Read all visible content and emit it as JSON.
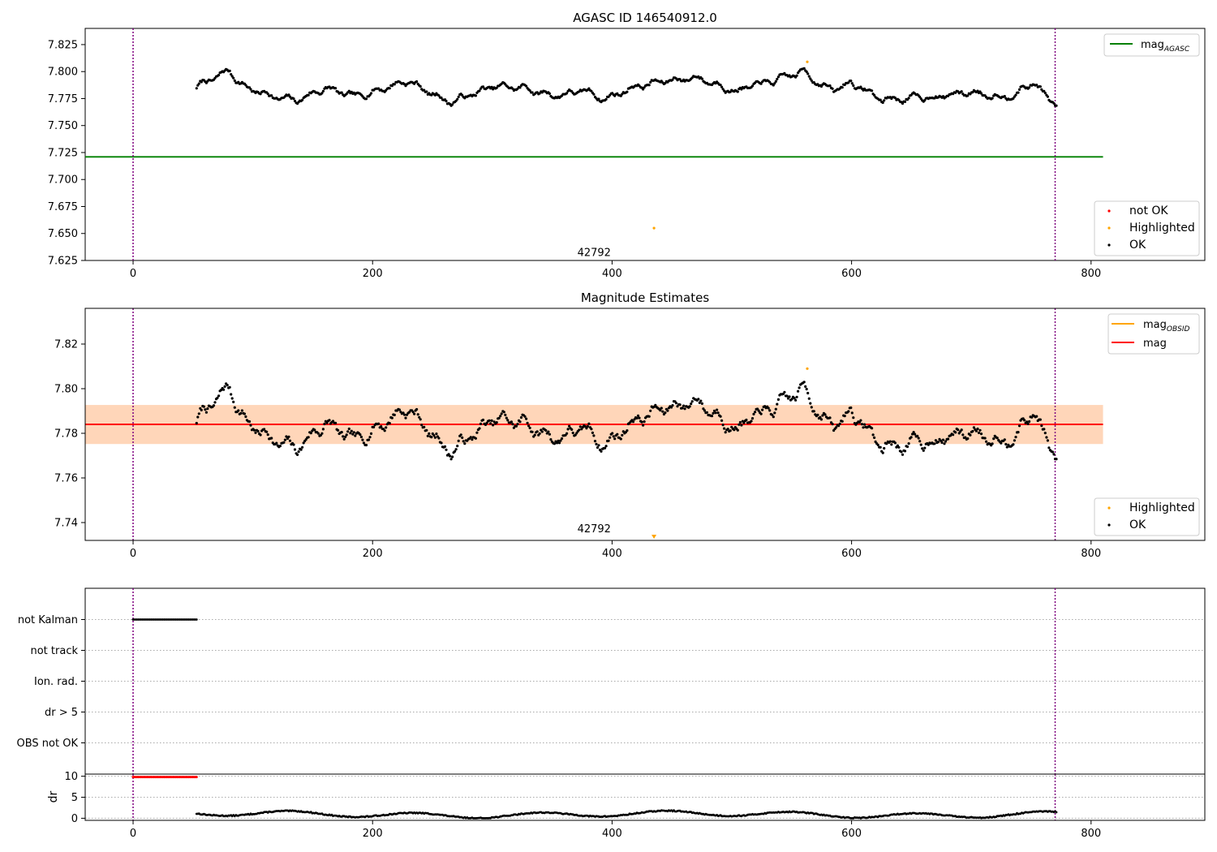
{
  "chart_data": [
    {
      "type": "scatter",
      "title": "AGASC ID 146540912.0",
      "xlabel": "",
      "ylabel": "",
      "xlim": [
        -40,
        895
      ],
      "ylim": [
        7.625,
        7.84
      ],
      "x_ticks": [
        0,
        200,
        400,
        600,
        800
      ],
      "y_ticks": [
        7.625,
        7.65,
        7.675,
        7.7,
        7.725,
        7.75,
        7.775,
        7.8,
        7.825
      ],
      "y_tick_labels": [
        "7.625",
        "7.650",
        "7.675",
        "7.700",
        "7.725",
        "7.750",
        "7.775",
        "7.800",
        "7.825"
      ],
      "vlines": [
        0,
        770
      ],
      "annotations": [
        {
          "text": "42792",
          "x": 385,
          "y": 7.633
        }
      ],
      "lines": [
        {
          "name": "mag_AGASC",
          "label_main": "mag",
          "label_sub": "AGASC",
          "color": "#008000",
          "y": 7.721,
          "x_range": [
            -40,
            810
          ]
        }
      ],
      "series": [
        {
          "name": "not OK",
          "color": "#ff0000",
          "seed": 0,
          "x": [],
          "y": []
        },
        {
          "name": "Highlighted",
          "color": "#ffa500",
          "x": [
            435,
            563
          ],
          "y": [
            7.655,
            7.809
          ]
        },
        {
          "name": "OK",
          "color": "#000000",
          "x_range": [
            53,
            771
          ],
          "n": 700,
          "anchors_x": [
            53,
            80,
            95,
            115,
            135,
            160,
            185,
            205,
            230,
            245,
            265,
            300,
            325,
            350,
            375,
            395,
            420,
            470,
            505,
            540,
            560,
            585,
            600,
            625,
            660,
            700,
            730,
            752,
            771
          ],
          "anchors_y": [
            7.786,
            7.8,
            7.785,
            7.778,
            7.772,
            7.785,
            7.775,
            7.784,
            7.792,
            7.782,
            7.772,
            7.785,
            7.785,
            7.778,
            7.782,
            7.775,
            7.787,
            7.795,
            7.783,
            7.792,
            7.8,
            7.782,
            7.79,
            7.774,
            7.776,
            7.781,
            7.778,
            7.79,
            7.768
          ],
          "noise": 0.0035,
          "seed": 7
        }
      ],
      "legend_upper": {
        "placement": "upper right",
        "entries": [
          "mag_AGASC"
        ]
      },
      "legend_lower": {
        "placement": "lower right",
        "entries": [
          "not OK",
          "Highlighted",
          "OK"
        ]
      }
    },
    {
      "type": "scatter",
      "title": "Magnitude Estimates",
      "xlabel": "",
      "ylabel": "",
      "xlim": [
        -40,
        895
      ],
      "ylim": [
        7.732,
        7.836
      ],
      "x_ticks": [
        0,
        200,
        400,
        600,
        800
      ],
      "y_ticks": [
        7.74,
        7.76,
        7.78,
        7.8,
        7.82
      ],
      "y_tick_labels": [
        "7.74",
        "7.76",
        "7.78",
        "7.80",
        "7.82"
      ],
      "vlines": [
        0,
        770
      ],
      "annotations": [
        {
          "text": "42792",
          "x": 385,
          "y": 7.7375
        }
      ],
      "bands": [
        {
          "y0": 7.7752,
          "y1": 7.7927,
          "color": "#ffc0cb",
          "opacity": 0.45,
          "x_range": [
            -40,
            810
          ]
        },
        {
          "y0": 7.7752,
          "y1": 7.7927,
          "color": "#ffa500",
          "opacity": 0.2,
          "x_range": [
            -40,
            810
          ]
        }
      ],
      "lines": [
        {
          "name": "mag_OBSID",
          "label_main": "mag",
          "label_sub": "OBSID",
          "color": "#ffa500",
          "y": 7.784,
          "x_range": [
            -40,
            810
          ]
        },
        {
          "name": "mag",
          "label_main": "mag",
          "label_sub": "",
          "color": "#ff0000",
          "y": 7.784,
          "x_range": [
            -40,
            810
          ]
        }
      ],
      "series": [
        {
          "name": "Highlighted",
          "color": "#ffa500",
          "x": [
            563
          ],
          "y": [
            7.809
          ],
          "marker_offscale_x": 435
        },
        {
          "name": "OK",
          "color": "#000000",
          "x_range": [
            53,
            771
          ],
          "n": 700,
          "anchors_x": [
            53,
            80,
            95,
            115,
            135,
            160,
            185,
            205,
            230,
            245,
            265,
            300,
            325,
            350,
            375,
            395,
            420,
            470,
            505,
            540,
            560,
            585,
            600,
            625,
            660,
            700,
            730,
            752,
            771
          ],
          "anchors_y": [
            7.786,
            7.8,
            7.785,
            7.778,
            7.772,
            7.785,
            7.775,
            7.784,
            7.792,
            7.782,
            7.772,
            7.785,
            7.785,
            7.778,
            7.782,
            7.775,
            7.787,
            7.795,
            7.783,
            7.792,
            7.8,
            7.782,
            7.79,
            7.774,
            7.776,
            7.781,
            7.778,
            7.79,
            7.768
          ],
          "noise": 0.0035,
          "seed": 7
        }
      ],
      "legend_upper": {
        "placement": "upper right",
        "entries": [
          "mag_OBSID",
          "mag"
        ]
      },
      "legend_lower": {
        "placement": "lower right",
        "entries": [
          "Highlighted",
          "OK"
        ]
      }
    },
    {
      "type": "scatter",
      "title": "",
      "xlabel": "",
      "ylabel": "",
      "xlim": [
        -40,
        895
      ],
      "categories": [
        "not Kalman",
        "not track",
        "Ion. rad.",
        "dr > 5",
        "OBS not OK"
      ],
      "vlines": [
        0,
        770
      ],
      "series": [
        {
          "name": "not Kalman",
          "color": "#000000",
          "x_range": [
            0,
            53
          ],
          "n": 50
        }
      ]
    },
    {
      "type": "scatter",
      "title": "",
      "xlabel": "",
      "ylabel": "dr",
      "xlim": [
        -40,
        895
      ],
      "ylim": [
        -0.5,
        10.5
      ],
      "x_ticks": [
        0,
        200,
        400,
        600,
        800
      ],
      "y_ticks": [
        0,
        5,
        10
      ],
      "y_tick_labels": [
        "0",
        "5",
        "10"
      ],
      "vlines": [
        0,
        770
      ],
      "series": [
        {
          "name": "dr not OK",
          "color": "#ff0000",
          "x_range": [
            0,
            53
          ],
          "n": 50,
          "y_const": 9.8
        },
        {
          "name": "dr OK",
          "color": "#000000",
          "x_range": [
            53,
            771
          ],
          "n": 700,
          "seed": 13
        }
      ]
    }
  ]
}
